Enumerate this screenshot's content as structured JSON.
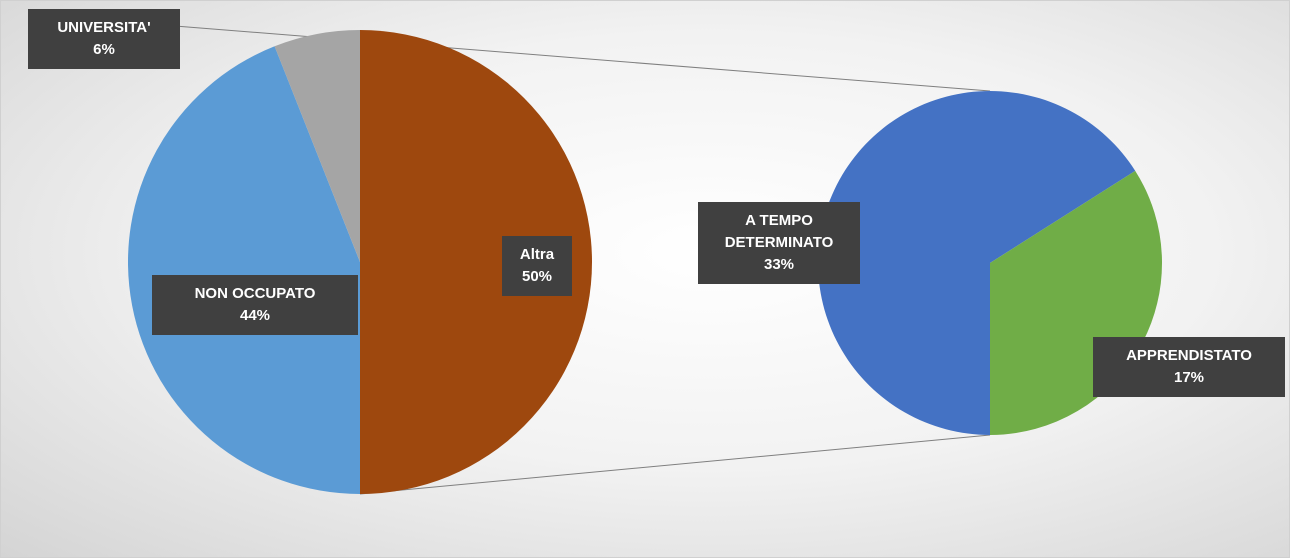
{
  "chart_data": [
    {
      "type": "pie",
      "categories": [
        "Altra",
        "NON OCCUPATO",
        "UNIVERSITA'"
      ],
      "values": [
        50,
        44,
        6
      ],
      "value_labels": [
        "50%",
        "44%",
        "6%"
      ],
      "colors": [
        "#9e480e",
        "#5b9bd5",
        "#a5a5a5"
      ]
    },
    {
      "type": "pie",
      "categories": [
        "A TEMPO DETERMINATO",
        "APPRENDISTATO"
      ],
      "values": [
        33,
        17
      ],
      "value_labels": [
        "33%",
        "17%"
      ],
      "colors": [
        "#4472c4",
        "#70ad47"
      ]
    }
  ]
}
